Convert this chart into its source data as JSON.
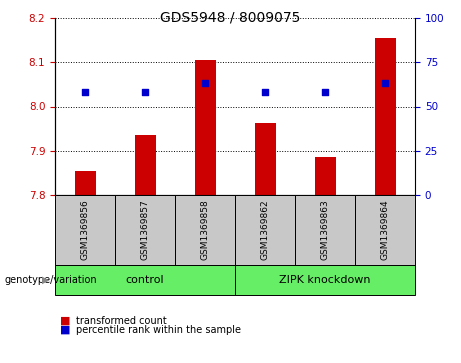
{
  "title": "GDS5948 / 8009075",
  "samples": [
    "GSM1369856",
    "GSM1369857",
    "GSM1369858",
    "GSM1369862",
    "GSM1369863",
    "GSM1369864"
  ],
  "bar_values": [
    7.855,
    7.935,
    8.105,
    7.962,
    7.887,
    8.155
  ],
  "bar_base": 7.8,
  "blue_values": [
    8.033,
    8.033,
    8.052,
    8.033,
    8.033,
    8.052
  ],
  "ylim": [
    7.8,
    8.2
  ],
  "yticks_left": [
    7.8,
    7.9,
    8.0,
    8.1,
    8.2
  ],
  "yticks_right": [
    0,
    25,
    50,
    75,
    100
  ],
  "bar_color": "#CC0000",
  "blue_color": "#0000CC",
  "bar_width": 0.35,
  "sample_box_color": "#C8C8C8",
  "green_color": "#66EE66",
  "legend_items": [
    "transformed count",
    "percentile rank within the sample"
  ],
  "group_labels": [
    "control",
    "ZIPK knockdown"
  ],
  "genotype_label": "genotype/variation"
}
